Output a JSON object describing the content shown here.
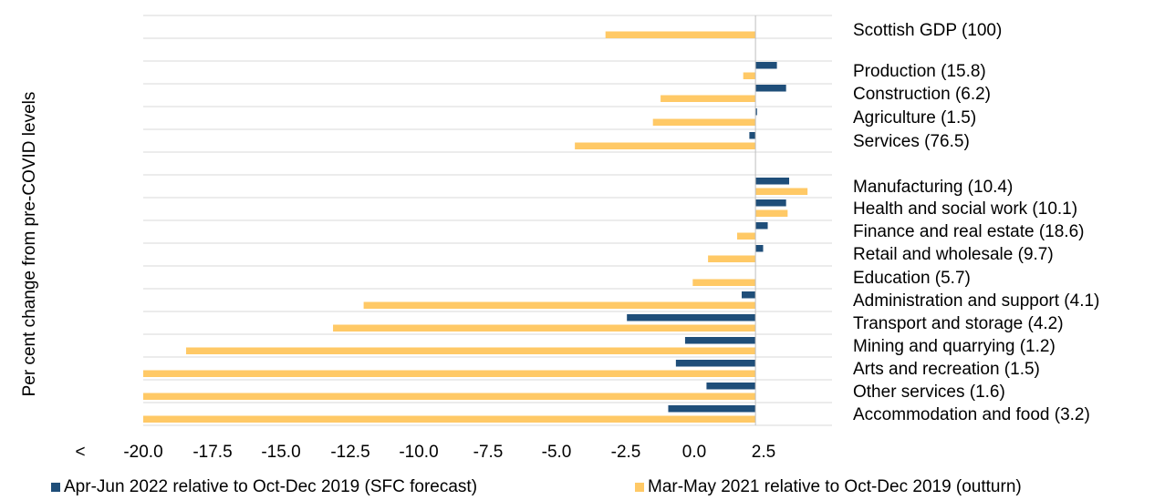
{
  "chart_data": {
    "type": "bar",
    "orientation": "horizontal",
    "ylabel": "Per cent change from pre-COVID levels",
    "xlim": [
      -20,
      2.5
    ],
    "xticks": [
      "<",
      "-20.0",
      "-17.5",
      "-15.0",
      "-12.5",
      "-10.0",
      "-7.5",
      "-5.0",
      "-2.5",
      "0.0",
      "2.5"
    ],
    "grid": true,
    "legend_position": "bottom",
    "categories": [
      "Scottish GDP (100)",
      "Production (15.8)",
      "Construction (6.2)",
      "Agriculture (1.5)",
      "Services (76.5)",
      "Manufacturing (10.4)",
      "Health and social work (10.1)",
      "Finance and real estate (18.6)",
      "Retail and wholesale (9.7)",
      "Education (5.7)",
      "Administration and support (4.1)",
      "Transport and storage (4.2)",
      "Mining and quarrying (1.2)",
      "Arts and recreation (1.5)",
      "Other services (1.6)",
      "Accommodation and food (3.2)"
    ],
    "series": [
      {
        "name": "Apr-Jun 2022 relative to Oct-Dec 2019 (SFC forecast)",
        "color": "#1f4e79",
        "values": [
          0,
          0.7,
          1.0,
          0.05,
          -0.2,
          1.1,
          1.0,
          0.4,
          0.25,
          0.0,
          -0.45,
          -4.2,
          -2.3,
          -2.6,
          -1.6,
          -2.85
        ]
      },
      {
        "name": "Mar-May 2021 relative to Oct-Dec 2019 (outturn)",
        "color": "#ffc966",
        "values": [
          -4.9,
          -0.4,
          -3.1,
          -3.35,
          -5.9,
          1.7,
          1.05,
          -0.6,
          -1.55,
          -2.05,
          -12.8,
          -13.8,
          -18.6,
          -20.0,
          -20.0,
          -20.0
        ]
      }
    ]
  }
}
